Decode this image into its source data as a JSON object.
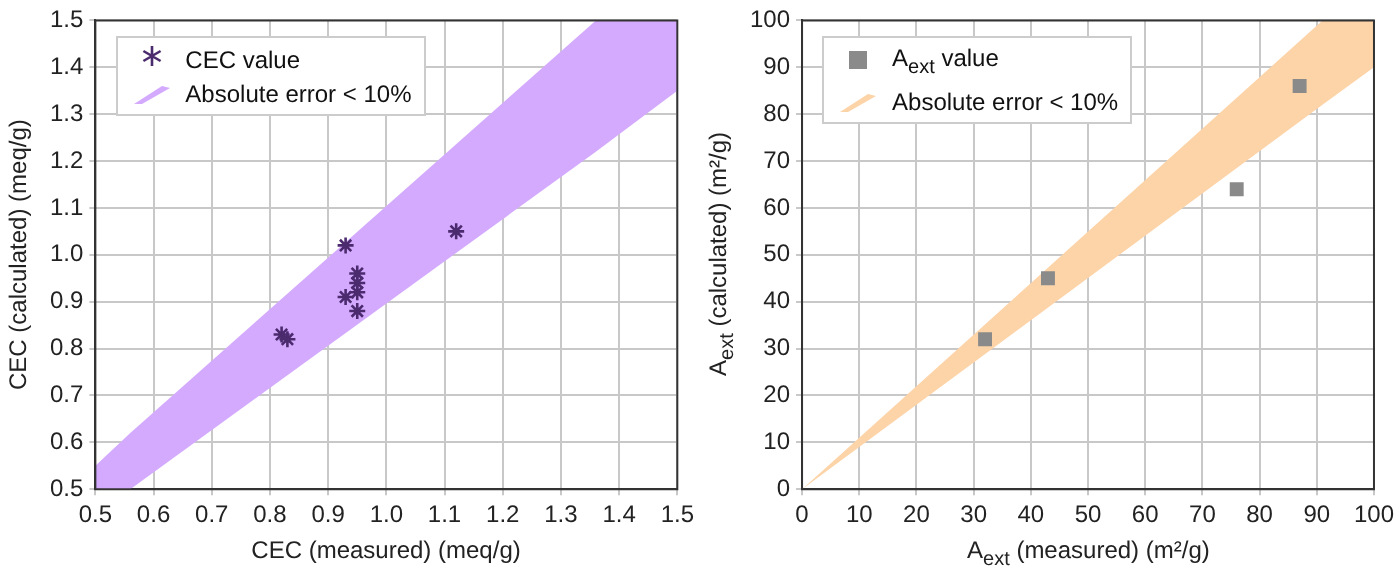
{
  "chart_data": [
    {
      "type": "scatter",
      "xlabel": "CEC (measured) (meq/g)",
      "ylabel": "CEC (calculated) (meq/g)",
      "xlim": [
        0.5,
        1.5
      ],
      "ylim": [
        0.5,
        1.5
      ],
      "xticks": [
        0.5,
        0.6,
        0.7,
        0.8,
        0.9,
        {
          "value": 1,
          "label": "1.0"
        },
        1.1,
        1.2,
        1.3,
        1.4,
        1.5
      ],
      "yticks": [
        0.5,
        0.6,
        0.7,
        0.8,
        0.9,
        {
          "value": 1,
          "label": "1.0"
        },
        1.1,
        1.2,
        1.3,
        1.4,
        1.5
      ],
      "grid": true,
      "legend": "top left",
      "series": [
        {
          "name": "CEC value",
          "type": "scatter",
          "marker": "cross",
          "color": "#4b2a6e",
          "x": [
            0.82,
            0.83,
            0.93,
            0.93,
            0.95,
            0.95,
            0.95,
            0.95,
            1.12
          ],
          "values": [
            0.83,
            0.82,
            1.02,
            0.91,
            0.96,
            0.94,
            0.92,
            0.88,
            1.05
          ]
        },
        {
          "name": "Absolute error < 10%",
          "type": "area",
          "color": "#d4aaff",
          "x": [
            0.5,
            0.56,
            1.36,
            1.5
          ],
          "values": [
            null,
            null,
            null,
            null
          ],
          "lower": [
            0.5,
            0.5,
            1.22,
            1.35
          ],
          "upper": [
            0.55,
            0.62,
            1.5,
            1.5
          ]
        }
      ]
    },
    {
      "type": "scatter",
      "xlabel": "A$_{ext}$ (measured) (m²/g)",
      "ylabel": "A$_{ext}$ (calculated) (m²/g)",
      "xlim": [
        0,
        100
      ],
      "ylim": [
        0,
        100
      ],
      "xticks": [
        0,
        10,
        20,
        30,
        40,
        50,
        60,
        70,
        80,
        90,
        100
      ],
      "yticks": [
        0,
        10,
        20,
        30,
        40,
        50,
        60,
        70,
        80,
        90,
        100
      ],
      "grid": true,
      "legend": "top left",
      "series": [
        {
          "name": "A$_{ext}$ value",
          "type": "scatter",
          "marker": "square",
          "color": "#8a8a8a",
          "x": [
            32,
            43,
            76,
            87
          ],
          "values": [
            32,
            45,
            64,
            86
          ]
        },
        {
          "name": "Absolute error < 10%",
          "type": "area",
          "color": "#fdd3a8",
          "x": [
            0,
            91,
            100
          ],
          "values": [
            null,
            null,
            null
          ],
          "lower": [
            0,
            82,
            90
          ],
          "upper": [
            0,
            100,
            100
          ]
        }
      ]
    }
  ]
}
